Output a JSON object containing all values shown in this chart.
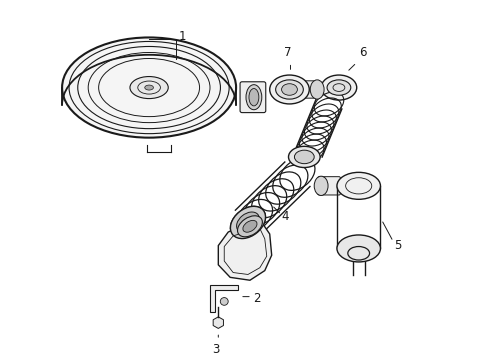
{
  "bg_color": "#ffffff",
  "line_color": "#1a1a1a",
  "line_width": 1.0,
  "fig_width": 4.9,
  "fig_height": 3.6,
  "dpi": 100
}
